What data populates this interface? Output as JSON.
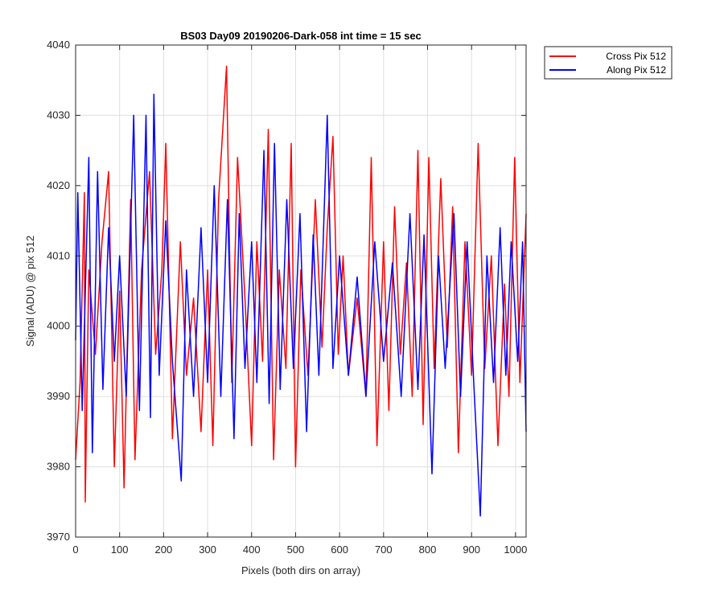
{
  "chart_data": {
    "type": "line",
    "title": "BS03 Day09 20190206-Dark-058 int time = 15 sec",
    "xlabel": "Pixels (both dirs on array)",
    "ylabel": "Signal (ADU) @ pix 512",
    "xlim": [
      0,
      1024
    ],
    "ylim": [
      3970,
      4040
    ],
    "xticks": [
      0,
      100,
      200,
      300,
      400,
      500,
      600,
      700,
      800,
      900,
      1000
    ],
    "yticks": [
      3970,
      3980,
      3990,
      4000,
      4010,
      4020,
      4030,
      4040
    ],
    "grid": true,
    "legend_position": "outside-top-right",
    "series": [
      {
        "name": "Cross Pix 512",
        "color": "#ff0000",
        "points": [
          [
            0,
            3981
          ],
          [
            10,
            3992
          ],
          [
            20,
            4019
          ],
          [
            22,
            3975
          ],
          [
            30,
            4008
          ],
          [
            45,
            3996
          ],
          [
            60,
            4012
          ],
          [
            75,
            4022
          ],
          [
            88,
            3980
          ],
          [
            100,
            4005
          ],
          [
            110,
            3977
          ],
          [
            125,
            4018
          ],
          [
            135,
            3981
          ],
          [
            150,
            4008
          ],
          [
            168,
            4022
          ],
          [
            182,
            3996
          ],
          [
            196,
            4008
          ],
          [
            205,
            4026
          ],
          [
            220,
            3984
          ],
          [
            238,
            4012
          ],
          [
            252,
            3993
          ],
          [
            268,
            4004
          ],
          [
            285,
            3985
          ],
          [
            300,
            4008
          ],
          [
            312,
            3983
          ],
          [
            325,
            4018
          ],
          [
            343,
            4037
          ],
          [
            355,
            3992
          ],
          [
            368,
            4024
          ],
          [
            385,
            4004
          ],
          [
            400,
            3983
          ],
          [
            412,
            4012
          ],
          [
            425,
            3995
          ],
          [
            438,
            4028
          ],
          [
            450,
            3981
          ],
          [
            463,
            4008
          ],
          [
            478,
            3994
          ],
          [
            490,
            4026
          ],
          [
            500,
            3980
          ],
          [
            512,
            4008
          ],
          [
            528,
            3993
          ],
          [
            545,
            4018
          ],
          [
            560,
            3997
          ],
          [
            572,
            4014
          ],
          [
            585,
            4027
          ],
          [
            597,
            3996
          ],
          [
            608,
            4010
          ],
          [
            620,
            3993
          ],
          [
            640,
            4004
          ],
          [
            660,
            3990
          ],
          [
            672,
            4024
          ],
          [
            685,
            3983
          ],
          [
            700,
            4012
          ],
          [
            712,
            3988
          ],
          [
            725,
            4017
          ],
          [
            738,
            3996
          ],
          [
            752,
            4009
          ],
          [
            765,
            3990
          ],
          [
            778,
            4025
          ],
          [
            790,
            3986
          ],
          [
            803,
            4024
          ],
          [
            815,
            3994
          ],
          [
            830,
            4021
          ],
          [
            845,
            3997
          ],
          [
            857,
            4017
          ],
          [
            870,
            3982
          ],
          [
            885,
            4012
          ],
          [
            900,
            3993
          ],
          [
            915,
            4026
          ],
          [
            930,
            3994
          ],
          [
            945,
            4010
          ],
          [
            960,
            3983
          ],
          [
            975,
            4006
          ],
          [
            985,
            3990
          ],
          [
            998,
            4024
          ],
          [
            1010,
            3992
          ],
          [
            1024,
            4016
          ]
        ]
      },
      {
        "name": "Along Pix 512",
        "color": "#0000ff",
        "points": [
          [
            0,
            3998
          ],
          [
            5,
            4019
          ],
          [
            15,
            3988
          ],
          [
            30,
            4024
          ],
          [
            38,
            3982
          ],
          [
            50,
            4022
          ],
          [
            62,
            3991
          ],
          [
            75,
            4014
          ],
          [
            88,
            3995
          ],
          [
            100,
            4010
          ],
          [
            115,
            3990
          ],
          [
            132,
            4030
          ],
          [
            145,
            3988
          ],
          [
            160,
            4030
          ],
          [
            170,
            3987
          ],
          [
            178,
            4033
          ],
          [
            190,
            3993
          ],
          [
            205,
            4015
          ],
          [
            220,
            3995
          ],
          [
            240,
            3978
          ],
          [
            252,
            4008
          ],
          [
            268,
            3990
          ],
          [
            285,
            4014
          ],
          [
            300,
            3992
          ],
          [
            315,
            4020
          ],
          [
            330,
            3990
          ],
          [
            345,
            4018
          ],
          [
            360,
            3984
          ],
          [
            372,
            4016
          ],
          [
            385,
            3994
          ],
          [
            400,
            4012
          ],
          [
            412,
            3992
          ],
          [
            428,
            4025
          ],
          [
            440,
            3989
          ],
          [
            452,
            4026
          ],
          [
            465,
            3991
          ],
          [
            480,
            4018
          ],
          [
            495,
            3994
          ],
          [
            510,
            4016
          ],
          [
            525,
            3985
          ],
          [
            540,
            4013
          ],
          [
            553,
            3993
          ],
          [
            572,
            4030
          ],
          [
            585,
            3994
          ],
          [
            600,
            4010
          ],
          [
            620,
            3993
          ],
          [
            640,
            4007
          ],
          [
            660,
            3990
          ],
          [
            680,
            4012
          ],
          [
            700,
            3995
          ],
          [
            720,
            4009
          ],
          [
            740,
            3990
          ],
          [
            760,
            4016
          ],
          [
            778,
            3991
          ],
          [
            792,
            4013
          ],
          [
            810,
            3979
          ],
          [
            825,
            4010
          ],
          [
            840,
            3994
          ],
          [
            860,
            4016
          ],
          [
            875,
            3990
          ],
          [
            890,
            4012
          ],
          [
            905,
            3992
          ],
          [
            920,
            3973
          ],
          [
            935,
            4010
          ],
          [
            950,
            3992
          ],
          [
            965,
            4014
          ],
          [
            978,
            3993
          ],
          [
            990,
            4012
          ],
          [
            1005,
            3995
          ],
          [
            1016,
            4012
          ],
          [
            1024,
            3985
          ]
        ]
      }
    ]
  }
}
